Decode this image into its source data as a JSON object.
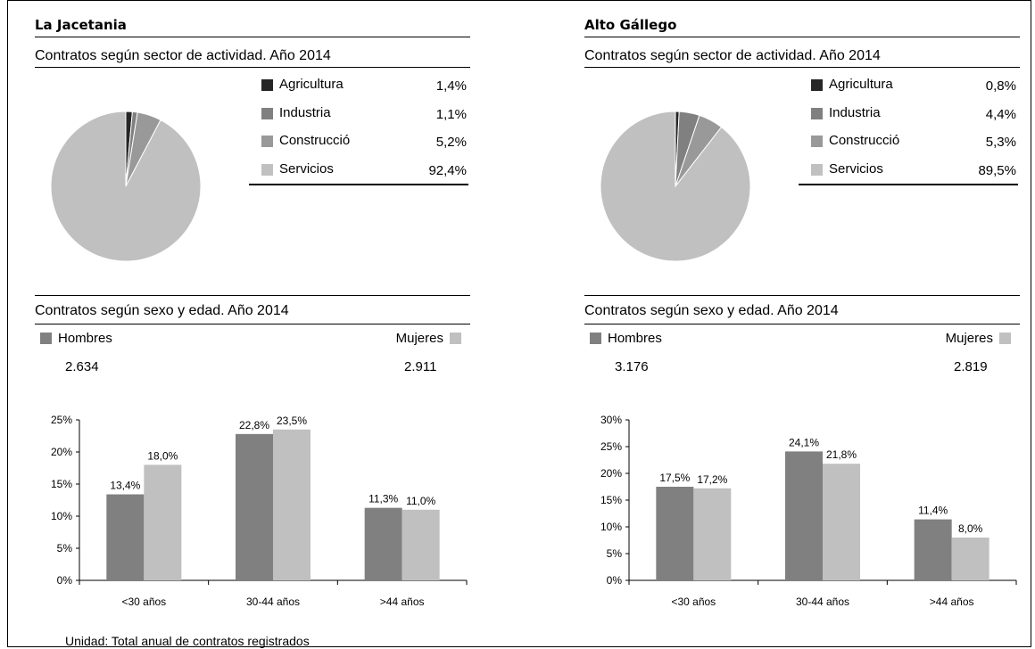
{
  "footer": "Unidad: Total anual de contratos registrados",
  "colors": {
    "agricultura": "#262626",
    "industria": "#808080",
    "construccion": "#999999",
    "servicios": "#c0c0c0",
    "hombres": "#808080",
    "mujeres": "#c0c0c0"
  },
  "panels": [
    {
      "region": "La Jacetania",
      "sector_title": "Contratos según sector de actividad. Año 2014",
      "legend": [
        {
          "label": "Agricultura",
          "value": "1,4%"
        },
        {
          "label": "Industria",
          "value": "1,1%"
        },
        {
          "label": "Construcció",
          "value": "5,2%"
        },
        {
          "label": "Servicios",
          "value": "92,4%"
        }
      ],
      "sex_title": "Contratos según sexo y edad. Año 2014",
      "hombres_label": "Hombres",
      "mujeres_label": "Mujeres",
      "hombres_total": "2.634",
      "mujeres_total": "2.911"
    },
    {
      "region": "Alto Gállego",
      "sector_title": "Contratos según sector de actividad. Año 2014",
      "legend": [
        {
          "label": "Agricultura",
          "value": "0,8%"
        },
        {
          "label": "Industria",
          "value": "4,4%"
        },
        {
          "label": "Construcció",
          "value": "5,3%"
        },
        {
          "label": "Servicios",
          "value": "89,5%"
        }
      ],
      "sex_title": "Contratos según sexo y edad. Año 2014",
      "hombres_label": "Hombres",
      "mujeres_label": "Mujeres",
      "hombres_total": "3.176",
      "mujeres_total": "2.819"
    }
  ],
  "chart_data": [
    {
      "type": "pie",
      "title": "Contratos según sector de actividad. Año 2014",
      "categories": [
        "Agricultura",
        "Industria",
        "Construcció",
        "Servicios"
      ],
      "values": [
        1.4,
        1.1,
        5.2,
        92.4
      ]
    },
    {
      "type": "bar",
      "title": "Contratos según sexo y edad. Año 2014",
      "categories": [
        "<30 años",
        "30-44 años",
        ">44 años"
      ],
      "series": [
        {
          "name": "Hombres",
          "values": [
            13.4,
            22.8,
            11.3
          ],
          "labels": [
            "13,4%",
            "22,8%",
            "11,3%"
          ]
        },
        {
          "name": "Mujeres",
          "values": [
            18.0,
            23.5,
            11.0
          ],
          "labels": [
            "18,0%",
            "23,5%",
            "11,0%"
          ]
        }
      ],
      "ylim": [
        0,
        25
      ],
      "yticks": [
        "0%",
        "5%",
        "10%",
        "15%",
        "20%",
        "25%"
      ]
    },
    {
      "type": "pie",
      "title": "Contratos según sector de actividad. Año 2014",
      "categories": [
        "Agricultura",
        "Industria",
        "Construcció",
        "Servicios"
      ],
      "values": [
        0.8,
        4.4,
        5.3,
        89.5
      ]
    },
    {
      "type": "bar",
      "title": "Contratos según sexo y edad. Año 2014",
      "categories": [
        "<30 años",
        "30-44 años",
        ">44 años"
      ],
      "series": [
        {
          "name": "Hombres",
          "values": [
            17.5,
            24.1,
            11.4
          ],
          "labels": [
            "17,5%",
            "24,1%",
            "11,4%"
          ]
        },
        {
          "name": "Mujeres",
          "values": [
            17.2,
            21.8,
            8.0
          ],
          "labels": [
            "17,2%",
            "21,8%",
            "8,0%"
          ]
        }
      ],
      "ylim": [
        0,
        30
      ],
      "yticks": [
        "0%",
        "5%",
        "10%",
        "15%",
        "20%",
        "25%",
        "30%"
      ]
    }
  ]
}
